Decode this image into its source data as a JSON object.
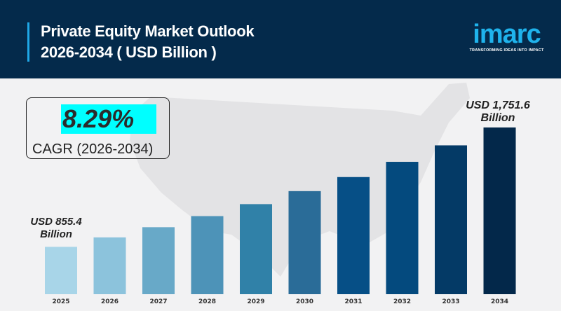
{
  "header": {
    "title_line1": "Private Equity Market Outlook",
    "title_line2": "2026-2034 ( USD Billion )",
    "logo_text": "imarc",
    "logo_tagline": "TRANSFORMING IDEAS INTO IMPACT"
  },
  "cagr": {
    "value": "8.29%",
    "label": "CAGR (2026-2034)"
  },
  "colors": {
    "header_bg": "#042a4b",
    "accent": "#1fa7e6",
    "cagr_highlight": "#00ffff"
  },
  "chart_data": {
    "type": "bar",
    "title": "Private Equity Market Outlook 2026-2034 ( USD Billion )",
    "categories": [
      "2025",
      "2026",
      "2027",
      "2028",
      "2029",
      "2030",
      "2031",
      "2032",
      "2033",
      "2034"
    ],
    "values": [
      855.4,
      926.3,
      1003.1,
      1086.3,
      1176.3,
      1273.8,
      1379.4,
      1493.8,
      1617.6,
      1751.6
    ],
    "colors": [
      "#a8d5e8",
      "#8cc3dc",
      "#68a9c8",
      "#4d93b8",
      "#3081a8",
      "#2a6c98",
      "#064f86",
      "#044a7e",
      "#043a66",
      "#03284a"
    ],
    "annotations": [
      {
        "category": "2025",
        "line1": "USD 855.4",
        "line2": "Billion"
      },
      {
        "category": "2034",
        "line1": "USD 1,751.6",
        "line2": "Billion"
      }
    ],
    "ylim": [
      500,
      1800
    ],
    "grid": false
  }
}
